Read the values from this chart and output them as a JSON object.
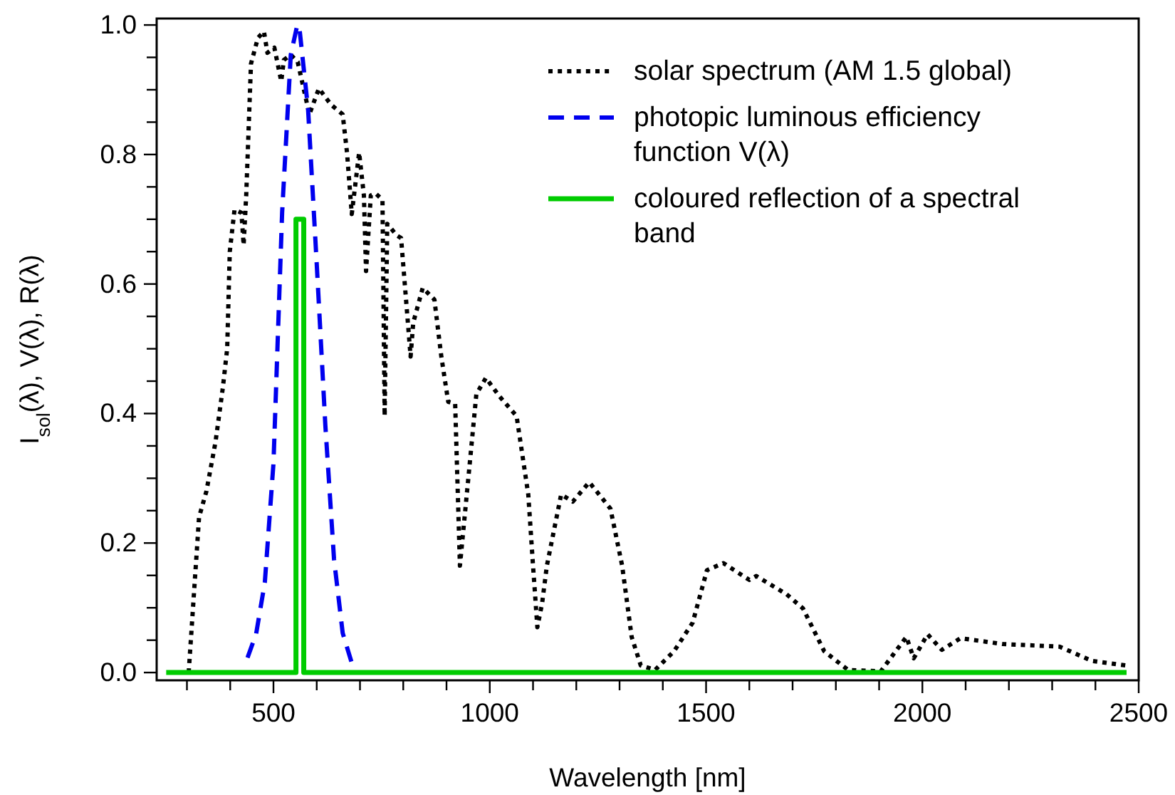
{
  "chart_data": {
    "type": "line",
    "xlabel": "Wavelength [nm]",
    "ylabel": "I$_{sol}$(λ), V(λ), R(λ)",
    "xlim": [
      230,
      2500
    ],
    "ylim": [
      -0.012,
      1.01
    ],
    "xticks": [
      {
        "value": 300,
        "label": null
      },
      {
        "value": 400,
        "label": null
      },
      500,
      {
        "value": 600,
        "label": null
      },
      {
        "value": 700,
        "label": null
      },
      {
        "value": 800,
        "label": null
      },
      {
        "value": 900,
        "label": null
      },
      1000,
      {
        "value": 1100,
        "label": null
      },
      {
        "value": 1200,
        "label": null
      },
      {
        "value": 1300,
        "label": null
      },
      {
        "value": 1400,
        "label": null
      },
      1500,
      {
        "value": 1600,
        "label": null
      },
      {
        "value": 1700,
        "label": null
      },
      {
        "value": 1800,
        "label": null
      },
      {
        "value": 1900,
        "label": null
      },
      2000,
      {
        "value": 2100,
        "label": null
      },
      {
        "value": 2200,
        "label": null
      },
      {
        "value": 2300,
        "label": null
      },
      {
        "value": 2400,
        "label": null
      },
      2500
    ],
    "yticks": [
      {
        "value": 0,
        "label": "0.0"
      },
      {
        "value": 0.05,
        "label": null
      },
      {
        "value": 0.1,
        "label": null
      },
      {
        "value": 0.15,
        "label": null
      },
      {
        "value": 0.2,
        "label": "0.2"
      },
      {
        "value": 0.25,
        "label": null
      },
      {
        "value": 0.3,
        "label": null
      },
      {
        "value": 0.35,
        "label": null
      },
      {
        "value": 0.4,
        "label": "0.4"
      },
      {
        "value": 0.45,
        "label": null
      },
      {
        "value": 0.5,
        "label": null
      },
      {
        "value": 0.55,
        "label": null
      },
      {
        "value": 0.6,
        "label": "0.6"
      },
      {
        "value": 0.65,
        "label": null
      },
      {
        "value": 0.7,
        "label": null
      },
      {
        "value": 0.75,
        "label": null
      },
      {
        "value": 0.8,
        "label": "0.8"
      },
      {
        "value": 0.85,
        "label": null
      },
      {
        "value": 0.9,
        "label": null
      },
      {
        "value": 0.95,
        "label": null
      },
      {
        "value": 1.0,
        "label": "1.0"
      }
    ],
    "grid": false,
    "legend": "top right",
    "marker": "none",
    "series": [
      {
        "name": "solar spectrum (AM 1.5 global)",
        "color": "#000000",
        "line_style": "dotted",
        "x": [
          304,
          328,
          345,
          366,
          383,
          393,
          399,
          410,
          426,
          431,
          437,
          448,
          464,
          478,
          486,
          502,
          518,
          524,
          540,
          556,
          578,
          583,
          605,
          633,
          660,
          670,
          681,
          698,
          709,
          714,
          725,
          736,
          752,
          757,
          763,
          785,
          795,
          817,
          823,
          845,
          872,
          888,
          904,
          920,
          931,
          948,
          969,
          991,
          1023,
          1062,
          1089,
          1100,
          1110,
          1121,
          1132,
          1165,
          1192,
          1230,
          1279,
          1306,
          1328,
          1349,
          1382,
          1426,
          1469,
          1502,
          1540,
          1600,
          1616,
          1686,
          1724,
          1773,
          1828,
          1904,
          1963,
          1980,
          2012,
          2045,
          2088,
          2186,
          2317,
          2392,
          2469
        ],
        "values": [
          0,
          0.24,
          0.28,
          0.356,
          0.44,
          0.5,
          0.65,
          0.715,
          0.71,
          0.66,
          0.737,
          0.94,
          0.98,
          0.99,
          0.957,
          0.965,
          0.913,
          0.946,
          0.954,
          0.943,
          0.877,
          0.862,
          0.902,
          0.877,
          0.862,
          0.803,
          0.708,
          0.803,
          0.737,
          0.62,
          0.737,
          0.74,
          0.73,
          0.396,
          0.693,
          0.675,
          0.671,
          0.488,
          0.54,
          0.594,
          0.576,
          0.488,
          0.418,
          0.415,
          0.165,
          0.283,
          0.43,
          0.455,
          0.426,
          0.396,
          0.275,
          0.165,
          0.07,
          0.107,
          0.165,
          0.275,
          0.264,
          0.294,
          0.253,
          0.165,
          0.055,
          0.011,
          0.004,
          0.033,
          0.077,
          0.158,
          0.169,
          0.143,
          0.149,
          0.121,
          0.099,
          0.033,
          0.004,
          0.002,
          0.055,
          0.022,
          0.059,
          0.035,
          0.053,
          0.044,
          0.04,
          0.018,
          0.011
        ]
      },
      {
        "name": "photopic luminous efficiency function V(λ)",
        "color": "#0000ee",
        "line_style": "dashed",
        "x": [
          440,
          460,
          480,
          500,
          520,
          540,
          555,
          560,
          580,
          600,
          620,
          640,
          660,
          680
        ],
        "values": [
          0.023,
          0.06,
          0.139,
          0.323,
          0.71,
          0.954,
          1.0,
          0.995,
          0.87,
          0.631,
          0.381,
          0.175,
          0.061,
          0.017
        ]
      },
      {
        "name": "coloured reflection of a spectral band",
        "color": "#00cc00",
        "line_style": "solid",
        "x": [
          252,
          552,
          552,
          570,
          570,
          2472
        ],
        "values": [
          0,
          0,
          0.7,
          0.7,
          0,
          0
        ]
      }
    ]
  }
}
